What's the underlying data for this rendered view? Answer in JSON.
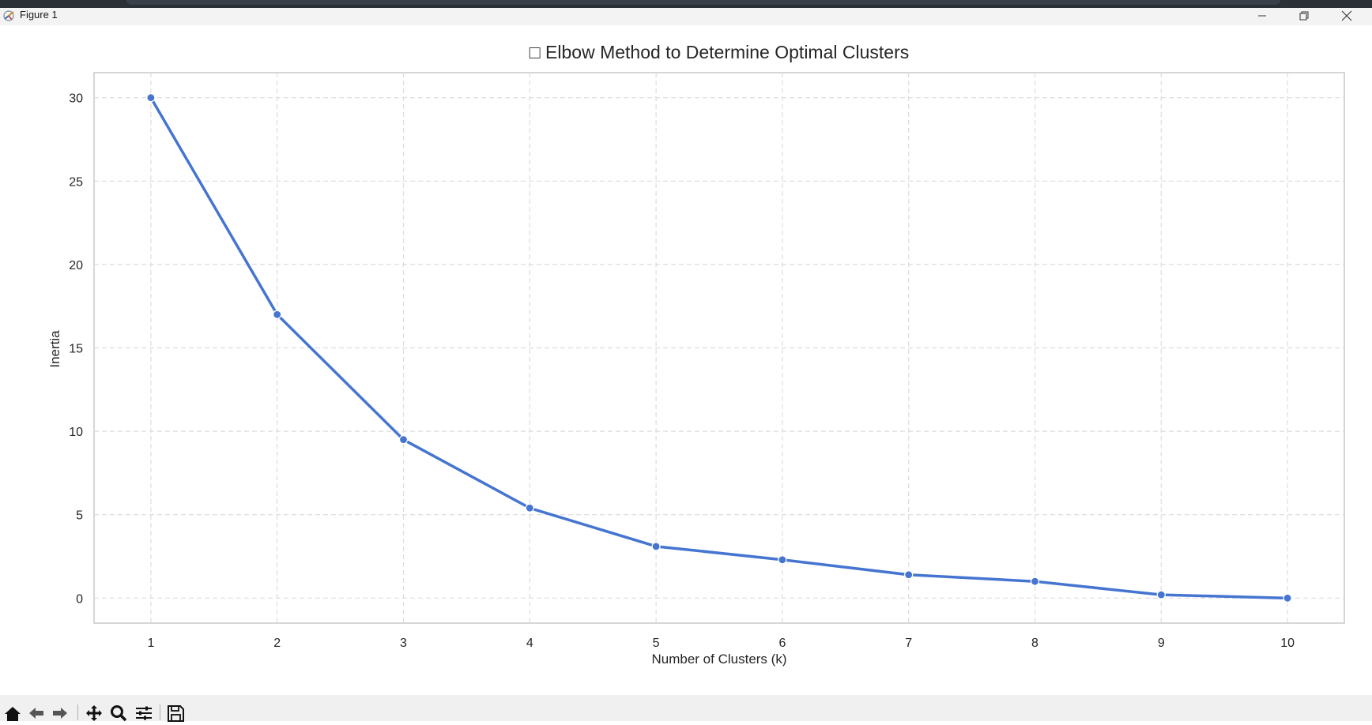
{
  "window": {
    "title": "Figure 1",
    "icons": [
      "app-icon",
      "minimize-icon",
      "restore-icon",
      "close-icon"
    ]
  },
  "toolbar": {
    "buttons": [
      "home-icon",
      "back-icon",
      "forward-icon",
      "pan-icon",
      "zoom-icon",
      "configure-icon",
      "save-icon"
    ]
  },
  "chart_data": {
    "type": "line",
    "title": "□ Elbow Method to Determine Optimal Clusters",
    "xlabel": "Number of Clusters (k)",
    "ylabel": "Inertia",
    "x": [
      1,
      2,
      3,
      4,
      5,
      6,
      7,
      8,
      9,
      10
    ],
    "series": [
      {
        "values": [
          30.0,
          17.0,
          9.5,
          5.4,
          3.1,
          2.3,
          1.4,
          1.0,
          0.2,
          0.0
        ],
        "color": "#4575d0"
      }
    ],
    "xticks": [
      1,
      2,
      3,
      4,
      5,
      6,
      7,
      8,
      9,
      10
    ],
    "yticks": [
      0,
      5,
      10,
      15,
      20,
      25,
      30
    ],
    "xlim": [
      0.55,
      10.45
    ],
    "ylim": [
      -1.5,
      31.5
    ],
    "grid": true,
    "legend": "none"
  }
}
